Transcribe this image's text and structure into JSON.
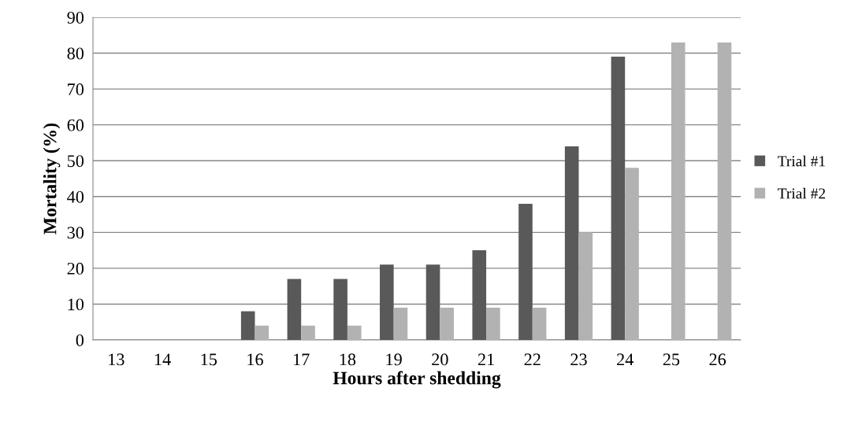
{
  "chart_data": {
    "type": "bar",
    "xlabel": "Hours after shedding",
    "ylabel": "Mortality (%)",
    "categories": [
      "13",
      "14",
      "15",
      "16",
      "17",
      "18",
      "19",
      "20",
      "21",
      "22",
      "23",
      "24",
      "25",
      "26"
    ],
    "series": [
      {
        "name": "Trial #1",
        "color": "#595959",
        "values": [
          0,
          0,
          0,
          8,
          17,
          17,
          21,
          21,
          25,
          38,
          54,
          79,
          0,
          0
        ]
      },
      {
        "name": "Trial #2",
        "color": "#b2b2b2",
        "values": [
          0,
          0,
          0,
          4,
          4,
          4,
          9,
          9,
          9,
          9,
          30,
          48,
          83,
          83
        ]
      }
    ],
    "ylim": [
      0,
      90
    ],
    "yticks": [
      0,
      10,
      20,
      30,
      40,
      50,
      60,
      70,
      80,
      90
    ],
    "grid": "y",
    "legend": "right"
  }
}
